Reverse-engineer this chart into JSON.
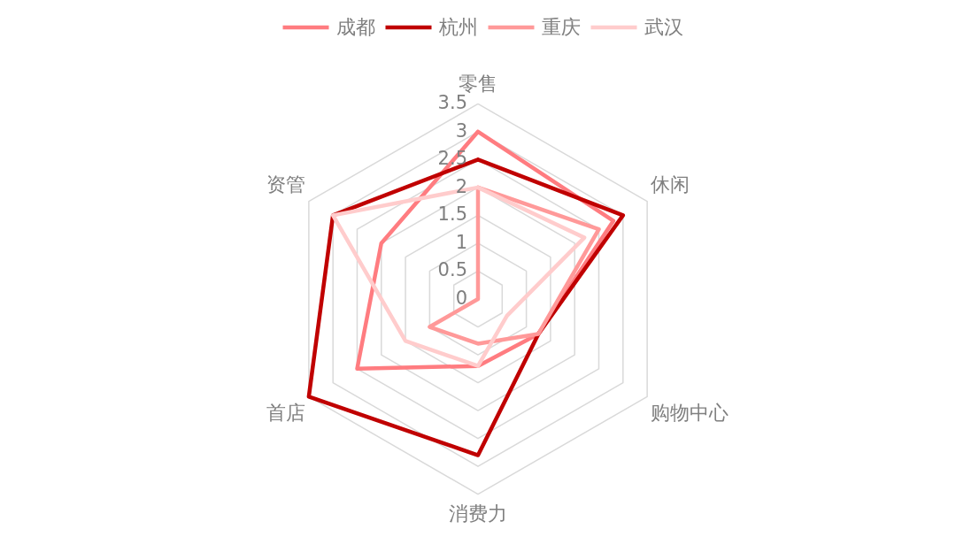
{
  "chart_data": {
    "type": "radar",
    "categories": [
      "零售",
      "休闲",
      "购物中心",
      "消费力",
      "首店",
      "资管"
    ],
    "series": [
      {
        "name": "成都",
        "color": "#ff7c80",
        "values": [
          3,
          2.8,
          1.25,
          1.2,
          2.5,
          2
        ]
      },
      {
        "name": "杭州",
        "color": "#c00000",
        "values": [
          2.5,
          3,
          1.25,
          2.8,
          3.5,
          3
        ]
      },
      {
        "name": "重庆",
        "color": "#ff9999",
        "values": [
          2,
          2.5,
          1.25,
          0.8,
          1,
          0
        ]
      },
      {
        "name": "武汉",
        "color": "#ffcccc",
        "values": [
          2,
          2.2,
          0.6,
          1.2,
          1.5,
          3
        ]
      }
    ],
    "ylim": [
      0,
      3.5
    ],
    "yticks": [
      0,
      0.5,
      1,
      1.5,
      2,
      2.5,
      3,
      3.5
    ],
    "grid": true,
    "legend": "top",
    "line_style": "solid"
  }
}
